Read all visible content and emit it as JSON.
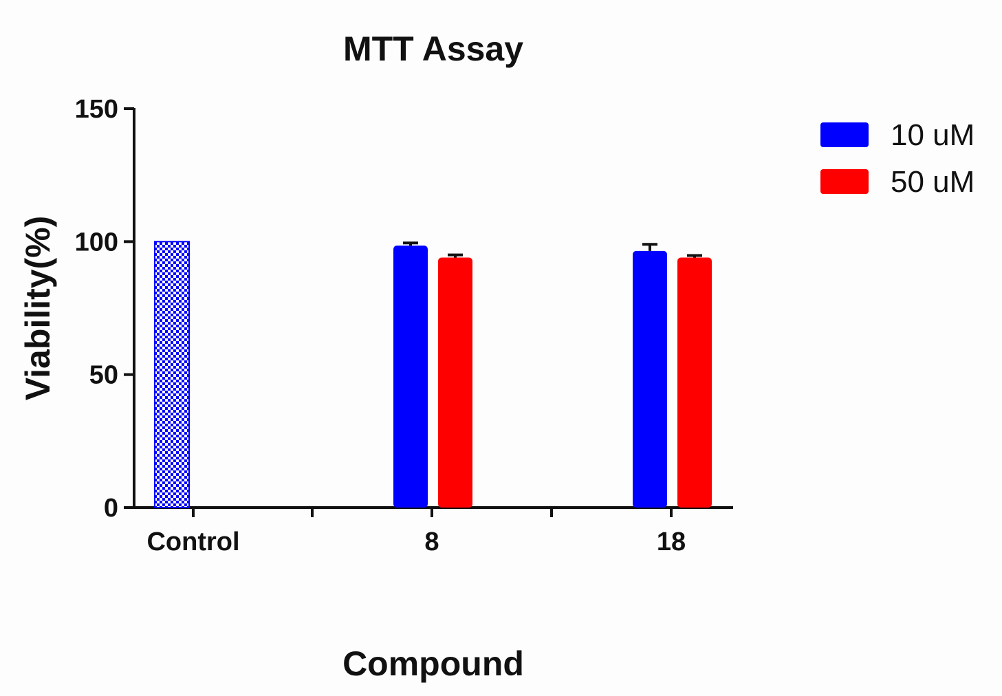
{
  "chart_data": {
    "type": "bar",
    "title": "MTT Assay",
    "xlabel": "Compound",
    "ylabel": "Viability(%)",
    "ylim": [
      0,
      150
    ],
    "yticks": [
      "0",
      "50",
      "100",
      "150"
    ],
    "categories": [
      "Control",
      "8",
      "18"
    ],
    "control": {
      "value": 100,
      "pattern": "checkered",
      "color": "#0000ff"
    },
    "series": [
      {
        "name": "10 uM",
        "color": "#0000ff",
        "values": [
          null,
          98.5,
          96.5
        ],
        "errors": [
          null,
          1.0,
          2.5
        ]
      },
      {
        "name": "50 uM",
        "color": "#ff0000",
        "values": [
          null,
          94.0,
          94.0
        ],
        "errors": [
          null,
          1.0,
          0.8
        ]
      }
    ],
    "legend": "top-right",
    "grid": false
  }
}
